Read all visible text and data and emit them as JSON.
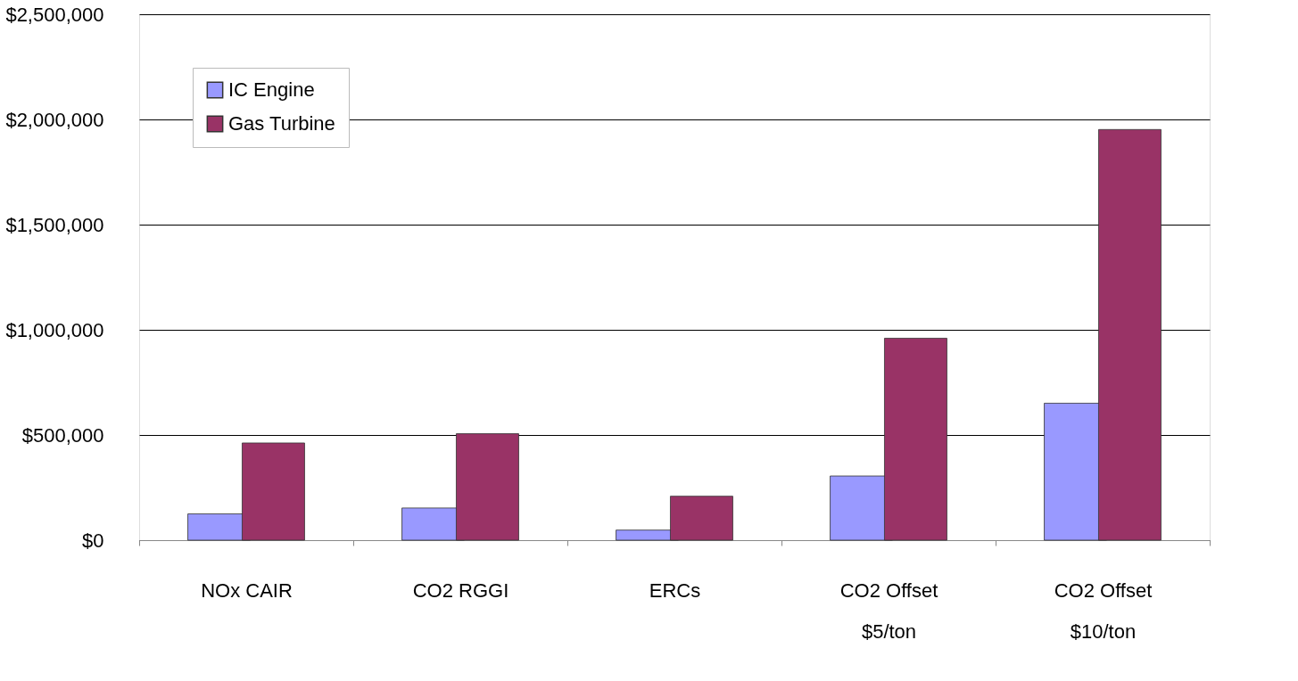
{
  "chart_data": {
    "type": "bar",
    "categories": [
      "NOx CAIR",
      "CO2 RGGI",
      "ERCs",
      "CO2 Offset\n$5/ton",
      "CO2 Offset\n$10/ton"
    ],
    "series": [
      {
        "name": "IC Engine",
        "color": "#9999ff",
        "values": [
          125000,
          153000,
          48000,
          305000,
          651000
        ]
      },
      {
        "name": "Gas Turbine",
        "color": "#993366",
        "values": [
          462000,
          506000,
          209000,
          960000,
          1952000
        ]
      }
    ],
    "ylim": [
      0,
      2500000
    ],
    "yticks": [
      {
        "value": 0,
        "label": "$0"
      },
      {
        "value": 500000,
        "label": "$500,000"
      },
      {
        "value": 1000000,
        "label": "$1,000,000"
      },
      {
        "value": 1500000,
        "label": "$1,500,000"
      },
      {
        "value": 2000000,
        "label": "$2,000,000"
      },
      {
        "value": 2500000,
        "label": "$2,500,000"
      }
    ],
    "grid": "y",
    "legend": "top left"
  }
}
